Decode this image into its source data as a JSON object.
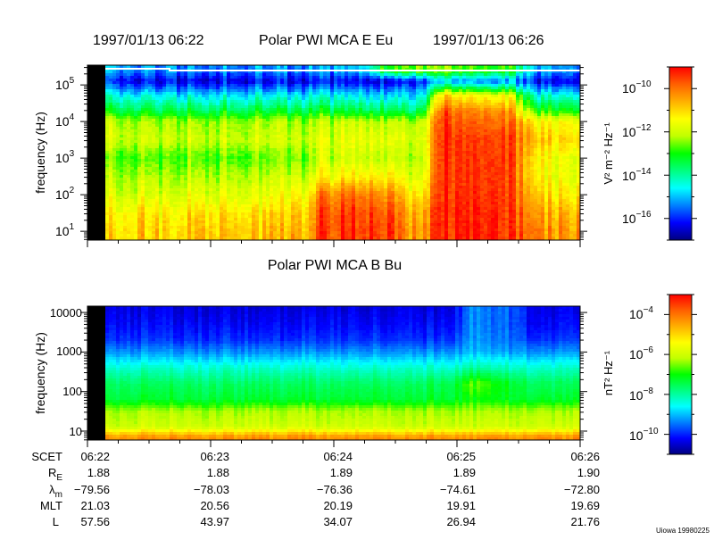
{
  "header": {
    "start_time": "1997/01/13 06:22",
    "title_top": "Polar PWI MCA E Eu",
    "end_time": "1997/01/13 06:26",
    "title_bottom": "Polar PWI MCA B Bu"
  },
  "colormap": [
    "#00007f",
    "#0000ff",
    "#0080ff",
    "#00ffff",
    "#00ff80",
    "#00ff00",
    "#c0ff00",
    "#ffff00",
    "#ffb000",
    "#ff6000",
    "#ff0000"
  ],
  "chart_data": [
    {
      "type": "heatmap",
      "title": "Polar PWI MCA E Eu",
      "xlabel": "time (SCET)",
      "ylabel": "frequency (Hz)",
      "yscale": "log",
      "ylim_log10": [
        0.76,
        5.54
      ],
      "x_range": [
        "06:22",
        "06:26"
      ],
      "y_ticks": [
        {
          "base": "10",
          "exp": "5"
        },
        {
          "base": "10",
          "exp": "4"
        },
        {
          "base": "10",
          "exp": "3"
        },
        {
          "base": "10",
          "exp": "2"
        },
        {
          "base": "10",
          "exp": "1"
        }
      ],
      "colorbar": {
        "label": "V² m⁻² Hz⁻¹",
        "range_log10": [
          -17,
          -9
        ],
        "ticks": [
          {
            "base": "10",
            "exp": "−10"
          },
          {
            "base": "10",
            "exp": "−12"
          },
          {
            "base": "10",
            "exp": "−14"
          },
          {
            "base": "10",
            "exp": "−16"
          }
        ]
      },
      "time_bins": 16,
      "log_freq": [
        5.4,
        5.1,
        4.7,
        4.3,
        4.0,
        3.5,
        3.0,
        2.5,
        2.0,
        1.5,
        1.0
      ],
      "log_power": [
        [
          -15.3,
          -15.3,
          -15.3,
          -15.3,
          -15.3,
          -15.3,
          -15.3,
          -15.3,
          -15.0,
          -12.8,
          -12.5,
          -12.5,
          -12.5,
          -12.8,
          -15.0,
          -15.3
        ],
        [
          -16.3,
          -16.3,
          -16.3,
          -16.3,
          -16.3,
          -16.3,
          -16.3,
          -16.3,
          -16.3,
          -16.3,
          -16.0,
          -15.0,
          -15.0,
          -15.2,
          -16.2,
          -16.3
        ],
        [
          -14.6,
          -14.6,
          -14.6,
          -14.6,
          -14.6,
          -14.6,
          -14.6,
          -14.6,
          -14.6,
          -14.6,
          -14.8,
          -11.0,
          -11.2,
          -11.5,
          -14.3,
          -14.4
        ],
        [
          -13.4,
          -13.4,
          -13.4,
          -13.4,
          -13.4,
          -13.4,
          -13.4,
          -13.4,
          -13.4,
          -13.4,
          -13.6,
          -9.8,
          -10.0,
          -10.2,
          -13.0,
          -13.0
        ],
        [
          -12.3,
          -12.3,
          -12.3,
          -12.3,
          -12.3,
          -12.3,
          -12.3,
          -12.2,
          -12.0,
          -12.0,
          -12.2,
          -9.5,
          -9.6,
          -9.8,
          -11.5,
          -11.5
        ],
        [
          -12.0,
          -12.0,
          -12.0,
          -12.0,
          -12.0,
          -12.0,
          -12.0,
          -11.8,
          -11.6,
          -11.6,
          -11.9,
          -9.3,
          -9.3,
          -9.4,
          -11.0,
          -11.0
        ],
        [
          -12.7,
          -12.7,
          -12.7,
          -12.7,
          -12.7,
          -12.7,
          -12.5,
          -12.0,
          -12.0,
          -12.0,
          -12.2,
          -9.3,
          -9.3,
          -9.3,
          -11.5,
          -11.6
        ],
        [
          -12.2,
          -12.2,
          -12.2,
          -12.2,
          -12.2,
          -12.2,
          -12.0,
          -11.4,
          -11.2,
          -11.2,
          -11.8,
          -9.3,
          -9.3,
          -9.3,
          -11.6,
          -11.6
        ],
        [
          -11.8,
          -11.8,
          -11.8,
          -11.8,
          -11.8,
          -11.8,
          -11.5,
          -10.0,
          -10.0,
          -10.2,
          -11.2,
          -9.3,
          -9.3,
          -9.3,
          -11.2,
          -11.2
        ],
        [
          -11.2,
          -11.2,
          -11.2,
          -11.2,
          -11.2,
          -11.2,
          -11.0,
          -9.5,
          -9.5,
          -9.6,
          -10.6,
          -9.2,
          -9.2,
          -9.2,
          -10.8,
          -10.6
        ],
        [
          -10.9,
          -10.9,
          -10.9,
          -10.9,
          -10.9,
          -10.9,
          -10.7,
          -9.4,
          -9.4,
          -9.5,
          -10.4,
          -9.2,
          -9.2,
          -9.2,
          -10.5,
          -10.3
        ]
      ]
    },
    {
      "type": "heatmap",
      "title": "Polar PWI MCA B Bu",
      "xlabel": "time (SCET)",
      "ylabel": "frequency (Hz)",
      "yscale": "log",
      "ylim_log10": [
        0.77,
        4.16
      ],
      "x_range": [
        "06:22",
        "06:26"
      ],
      "y_ticks": [
        "10000",
        "1000",
        "100",
        "10"
      ],
      "colorbar": {
        "label": "nT² Hz⁻¹",
        "range_log10": [
          -11,
          -3
        ],
        "ticks": [
          {
            "base": "10",
            "exp": "−4"
          },
          {
            "base": "10",
            "exp": "−6"
          },
          {
            "base": "10",
            "exp": "−8"
          },
          {
            "base": "10",
            "exp": "−10"
          }
        ]
      },
      "time_bins": 16,
      "log_freq": [
        4.1,
        3.7,
        3.3,
        3.0,
        2.6,
        2.2,
        1.8,
        1.5,
        1.1,
        0.85
      ],
      "log_power": [
        [
          -10.4,
          -10.4,
          -10.4,
          -10.4,
          -10.4,
          -10.4,
          -10.4,
          -10.4,
          -10.4,
          -10.4,
          -10.4,
          -10.4,
          -9.3,
          -9.6,
          -10.3,
          -10.4
        ],
        [
          -10.2,
          -10.2,
          -10.2,
          -10.2,
          -10.2,
          -10.2,
          -10.2,
          -10.2,
          -10.2,
          -10.2,
          -10.2,
          -10.2,
          -9.3,
          -9.6,
          -10.2,
          -10.2
        ],
        [
          -9.9,
          -9.9,
          -9.9,
          -9.9,
          -9.9,
          -9.9,
          -9.9,
          -9.9,
          -9.9,
          -9.9,
          -9.9,
          -9.9,
          -9.2,
          -9.5,
          -9.9,
          -9.9
        ],
        [
          -9.3,
          -9.3,
          -9.3,
          -9.3,
          -9.3,
          -9.3,
          -9.3,
          -9.3,
          -9.3,
          -9.3,
          -9.3,
          -9.3,
          -9.0,
          -9.2,
          -9.3,
          -9.3
        ],
        [
          -8.3,
          -8.3,
          -8.3,
          -8.3,
          -8.3,
          -8.3,
          -8.3,
          -8.3,
          -8.3,
          -8.3,
          -8.3,
          -8.3,
          -8.0,
          -8.2,
          -8.3,
          -8.3
        ],
        [
          -7.6,
          -7.6,
          -7.6,
          -7.6,
          -7.6,
          -7.6,
          -7.6,
          -7.6,
          -7.6,
          -7.6,
          -7.6,
          -7.5,
          -6.6,
          -7.2,
          -7.6,
          -7.6
        ],
        [
          -7.3,
          -7.3,
          -7.3,
          -7.3,
          -7.3,
          -7.3,
          -7.3,
          -7.3,
          -7.3,
          -7.3,
          -7.3,
          -7.3,
          -7.0,
          -7.2,
          -7.3,
          -7.3
        ],
        [
          -6.3,
          -6.3,
          -6.3,
          -6.3,
          -6.3,
          -6.3,
          -6.3,
          -6.3,
          -6.3,
          -6.3,
          -6.3,
          -6.3,
          -6.3,
          -6.3,
          -6.3,
          -6.3
        ],
        [
          -6.0,
          -6.0,
          -6.0,
          -6.0,
          -6.0,
          -6.0,
          -6.0,
          -6.0,
          -6.0,
          -6.0,
          -6.0,
          -6.0,
          -6.0,
          -6.0,
          -6.0,
          -6.0
        ],
        [
          -4.3,
          -4.3,
          -4.3,
          -4.3,
          -4.3,
          -4.3,
          -4.3,
          -4.3,
          -4.3,
          -4.3,
          -4.3,
          -4.3,
          -4.3,
          -4.3,
          -4.3,
          -4.3
        ]
      ]
    }
  ],
  "ephemeris": {
    "labels": {
      "scet": "SCET",
      "re": "R",
      "re_sub": "E",
      "lam": "λ",
      "lam_sub": "m",
      "mlt": "MLT",
      "l": "L"
    },
    "columns": [
      {
        "scet": "06:22",
        "re": "1.88",
        "lam": "−79.56",
        "mlt": "21.03",
        "l": "57.56"
      },
      {
        "scet": "06:23",
        "re": "1.88",
        "lam": "−78.03",
        "mlt": "20.56",
        "l": "43.97"
      },
      {
        "scet": "06:24",
        "re": "1.89",
        "lam": "−76.36",
        "mlt": "20.19",
        "l": "34.07"
      },
      {
        "scet": "06:25",
        "re": "1.89",
        "lam": "−74.61",
        "mlt": "19.91",
        "l": "26.94"
      },
      {
        "scet": "06:26",
        "re": "1.90",
        "lam": "−72.80",
        "mlt": "19.69",
        "l": "21.76"
      }
    ]
  },
  "footer": {
    "credit": "Uiowa 19980225"
  }
}
